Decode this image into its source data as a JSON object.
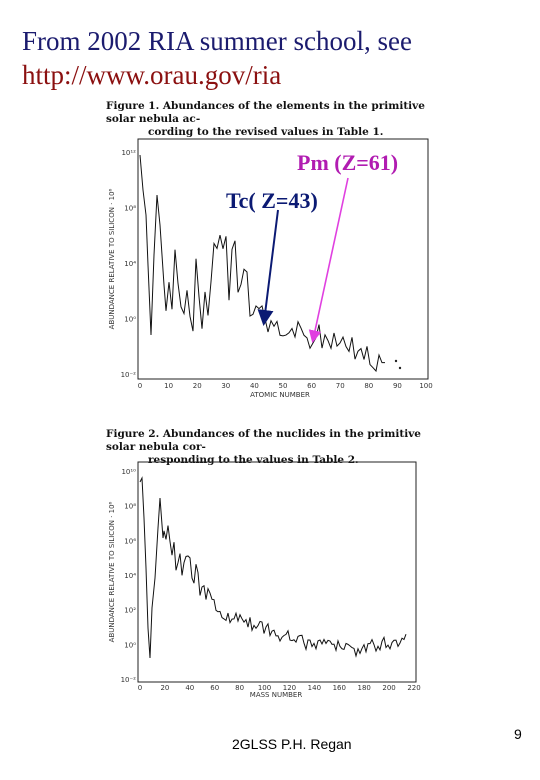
{
  "slide": {
    "title_line1": "From 2002 RIA summer school, see",
    "title_line2": "http://www.orau.gov/ria",
    "footer": "2GLSS P.H. Regan",
    "page_number": "9",
    "annotation_pm": "Pm (Z=61)",
    "annotation_tc": "Tc( Z=43)",
    "colors": {
      "title": "#1b1b6e",
      "link": "#8b1010",
      "pm": "#b11cb1",
      "tc": "#0b1a73"
    }
  },
  "figure1": {
    "caption_line1": "Figure 1. Abundances of the elements in the primitive solar nebula ac-",
    "caption_line2": "cording to the revised values in Table 1.",
    "xlabel": "ATOMIC NUMBER",
    "ylabel": "ABUNDANCE RELATIVE TO SILICON · 10⁶",
    "xticks": [
      "0",
      "10",
      "20",
      "30",
      "40",
      "50",
      "60",
      "70",
      "80",
      "90",
      "100"
    ],
    "yticks": [
      "10¹²",
      "10⁸",
      "10⁴",
      "10⁰",
      "10⁻²"
    ]
  },
  "figure2": {
    "caption_line1": "Figure 2. Abundances of the nuclides in the primitive solar nebula cor-",
    "caption_line2": "responding to the values in Table 2.",
    "xlabel": "MASS NUMBER",
    "ylabel": "ABUNDANCE RELATIVE TO SILICON · 10⁶",
    "xticks": [
      "0",
      "20",
      "40",
      "60",
      "80",
      "100",
      "120",
      "140",
      "160",
      "180",
      "200",
      "220"
    ],
    "yticks": [
      "10¹⁰",
      "10⁸",
      "10⁶",
      "10⁴",
      "10²",
      "10⁰",
      "10⁻²"
    ]
  }
}
